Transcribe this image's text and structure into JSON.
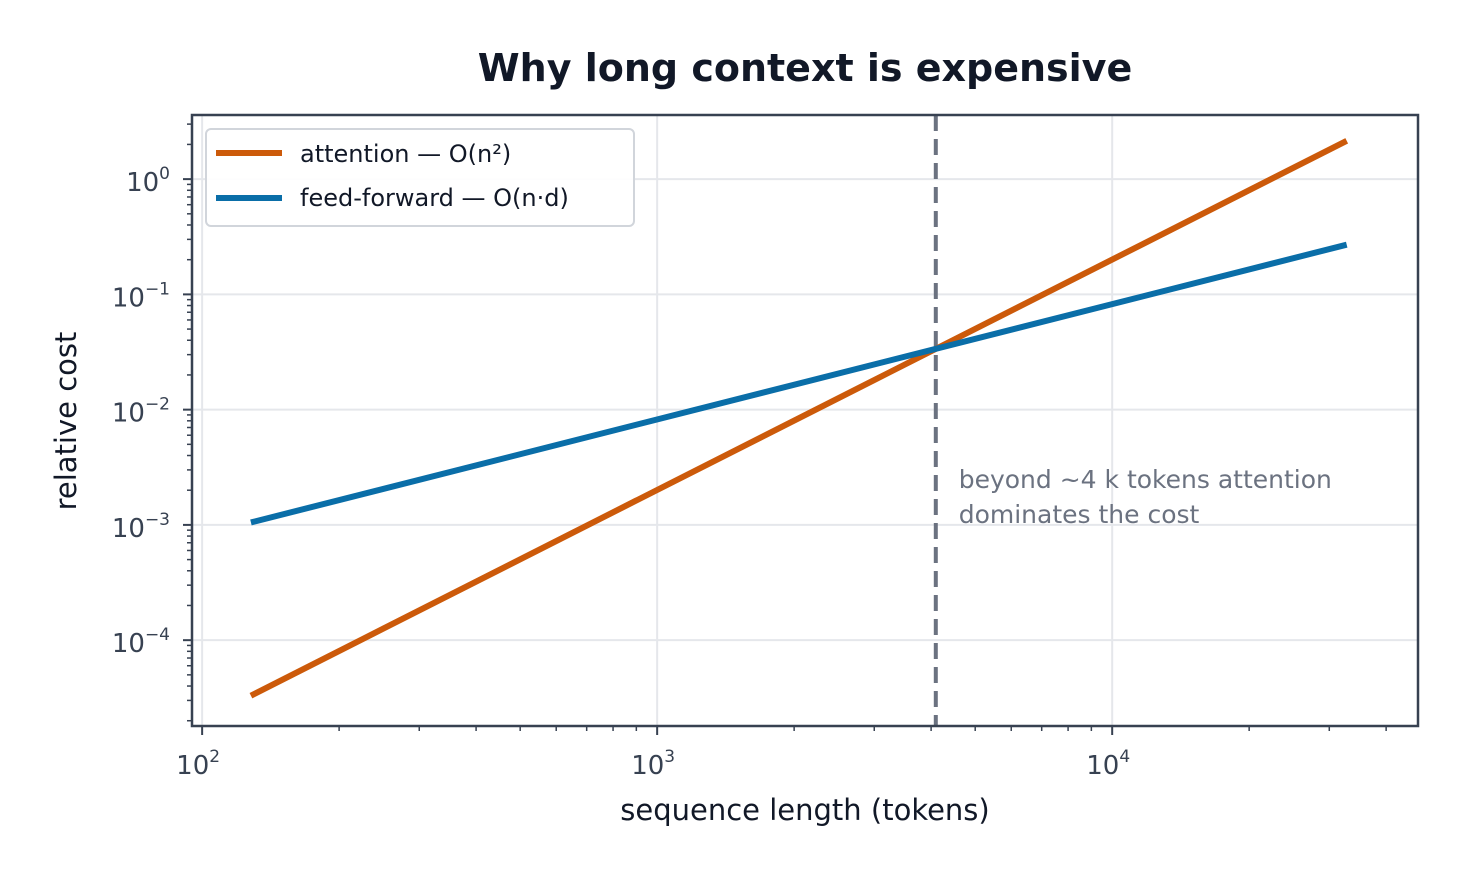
{
  "chart_data": {
    "type": "line",
    "title": "Why long context is expensive",
    "xlabel": "sequence length (tokens)",
    "ylabel": "relative cost",
    "x_scale": "log",
    "y_scale": "log",
    "xlim": [
      95,
      47000
    ],
    "ylim": [
      1.8e-05,
      3.6
    ],
    "x_ticks": [
      {
        "value": 100,
        "base": "10",
        "exp": "2"
      },
      {
        "value": 1000,
        "base": "10",
        "exp": "3"
      },
      {
        "value": 10000,
        "base": "10",
        "exp": "4"
      }
    ],
    "y_ticks": [
      {
        "value": 0.0001,
        "base": "10",
        "exp": "−4"
      },
      {
        "value": 0.001,
        "base": "10",
        "exp": "−3"
      },
      {
        "value": 0.01,
        "base": "10",
        "exp": "−2"
      },
      {
        "value": 0.1,
        "base": "10",
        "exp": "−1"
      },
      {
        "value": 1,
        "base": "10",
        "exp": "0"
      }
    ],
    "grid": true,
    "legend_position": "top-left",
    "series": [
      {
        "name": "attention — O(n²)",
        "color": "#cc5a0a",
        "x": [
          128,
          32768
        ],
        "y": [
          3.3e-05,
          2.15
        ]
      },
      {
        "name": "feed-forward — O(n·d)",
        "color": "#0a6ea8",
        "x": [
          128,
          32768
        ],
        "y": [
          0.00105,
          0.27
        ]
      }
    ],
    "vline": {
      "x": 4096,
      "color": "#6b7280",
      "style": "dashed"
    },
    "annotation": {
      "lines": [
        "beyond ~4 k tokens attention",
        "dominates the cost"
      ],
      "x": 4600,
      "y": 0.0021
    }
  }
}
